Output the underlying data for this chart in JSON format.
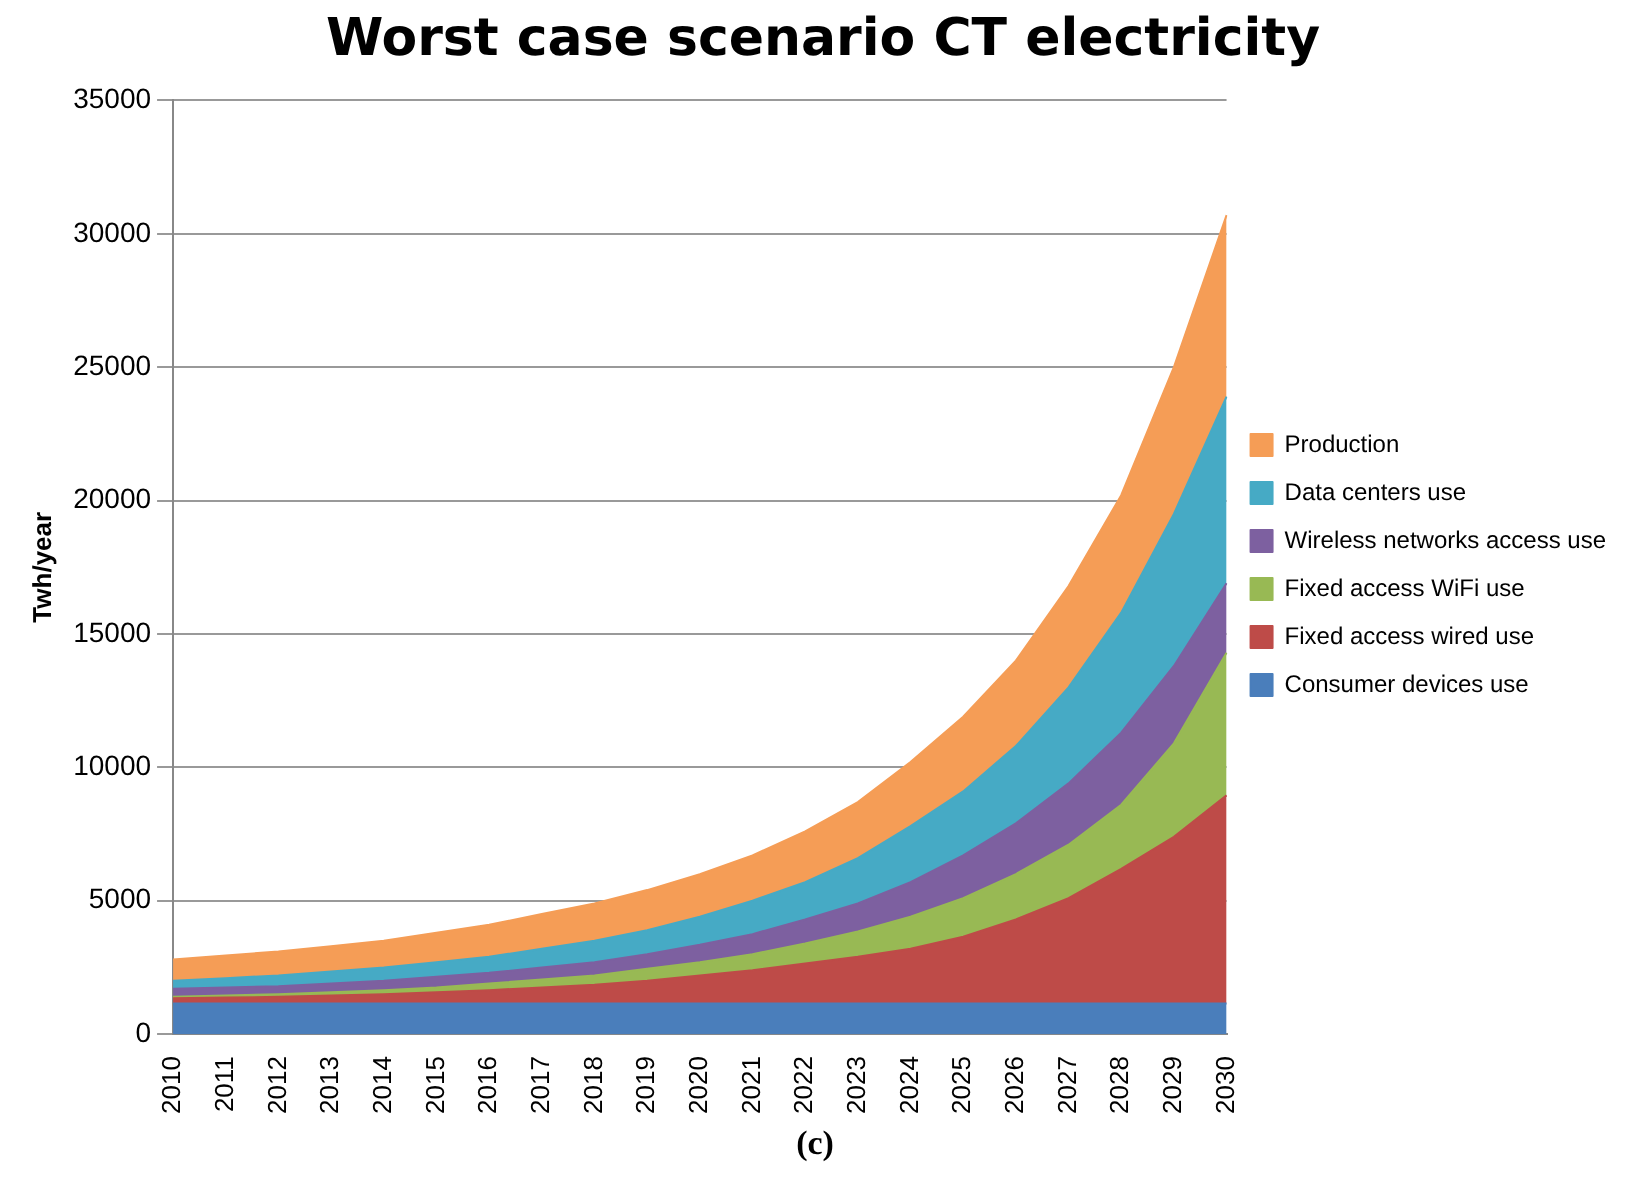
{
  "chart_data": {
    "type": "area",
    "title": "Worst case scenario CT electricity",
    "ylabel": "Twh/year",
    "annotations": [
      "(c)"
    ],
    "categories": [
      "2010",
      "2011",
      "2012",
      "2013",
      "2014",
      "2015",
      "2016",
      "2017",
      "2018",
      "2019",
      "2020",
      "2021",
      "2022",
      "2023",
      "2024",
      "2025",
      "2026",
      "2027",
      "2028",
      "2029",
      "2030"
    ],
    "stacked": true,
    "ylim": [
      0,
      35000
    ],
    "yticks": [
      0,
      5000,
      10000,
      15000,
      20000,
      25000,
      30000,
      35000
    ],
    "grid": "y",
    "legend": "right",
    "marker": "none",
    "series": [
      {
        "name": "Consumer devices use",
        "color": "#4a7ebb",
        "values": [
          1150,
          1150,
          1150,
          1150,
          1150,
          1150,
          1150,
          1150,
          1150,
          1150,
          1150,
          1150,
          1150,
          1150,
          1150,
          1150,
          1150,
          1150,
          1150,
          1150,
          1150
        ]
      },
      {
        "name": "Fixed access wired use",
        "color": "#be4b48",
        "values": [
          200,
          220,
          250,
          300,
          350,
          420,
          500,
          600,
          700,
          850,
          1050,
          1250,
          1500,
          1750,
          2050,
          2500,
          3150,
          3950,
          5050,
          6250,
          7800
        ]
      },
      {
        "name": "Fixed access WiFi use",
        "color": "#98b954",
        "values": [
          50,
          80,
          100,
          120,
          150,
          180,
          250,
          300,
          350,
          450,
          500,
          600,
          750,
          950,
          1200,
          1450,
          1700,
          2000,
          2400,
          3500,
          5350
        ]
      },
      {
        "name": "Wireless networks access use",
        "color": "#7d60a0",
        "values": [
          300,
          300,
          300,
          330,
          350,
          400,
          400,
          450,
          500,
          550,
          650,
          750,
          900,
          1050,
          1300,
          1600,
          1900,
          2300,
          2700,
          2900,
          2600
        ]
      },
      {
        "name": "Data centers use",
        "color": "#46aac5",
        "values": [
          300,
          350,
          400,
          450,
          500,
          550,
          600,
          700,
          800,
          900,
          1050,
          1250,
          1400,
          1700,
          2100,
          2400,
          2900,
          3600,
          4500,
          5700,
          7000
        ]
      },
      {
        "name": "Production",
        "color": "#f59d56",
        "values": [
          800,
          850,
          900,
          950,
          1000,
          1100,
          1200,
          1300,
          1400,
          1500,
          1600,
          1700,
          1900,
          2100,
          2400,
          2800,
          3200,
          3800,
          4400,
          5500,
          6800
        ]
      }
    ]
  }
}
